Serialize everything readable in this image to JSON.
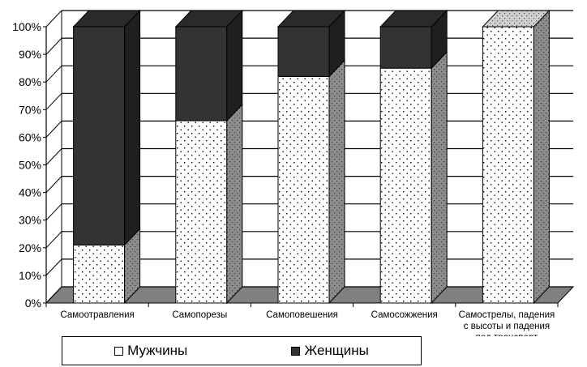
{
  "chart_data": {
    "type": "bar",
    "stacked": "percent",
    "style": "3d",
    "categories": [
      "Самоотравления",
      "Самопорезы",
      "Самоповешения",
      "Самосожжения",
      [
        "Самострелы, падения",
        "с высоты и падения",
        "под транспорт"
      ]
    ],
    "series": [
      {
        "name": "Мужчины",
        "values": [
          21,
          66,
          82,
          85,
          100
        ]
      },
      {
        "name": "Женщины",
        "values": [
          79,
          34,
          18,
          15,
          0
        ]
      }
    ],
    "yticks": [
      "0%",
      "10%",
      "20%",
      "30%",
      "40%",
      "50%",
      "60%",
      "70%",
      "80%",
      "90%",
      "100%"
    ],
    "ylim": [
      0,
      100
    ],
    "grid": true,
    "legend_position": "bottom",
    "colors": {
      "men_fill": "#ffffff",
      "men_side": "#888888",
      "women_front": "#333333",
      "women_side": "#1f1f1f",
      "women_top": "#2a2a2a",
      "men_top": "#d0d0d0",
      "floor": "#808080"
    }
  },
  "legend": {
    "men_label": "Мужчины",
    "women_label": "Женщины"
  }
}
